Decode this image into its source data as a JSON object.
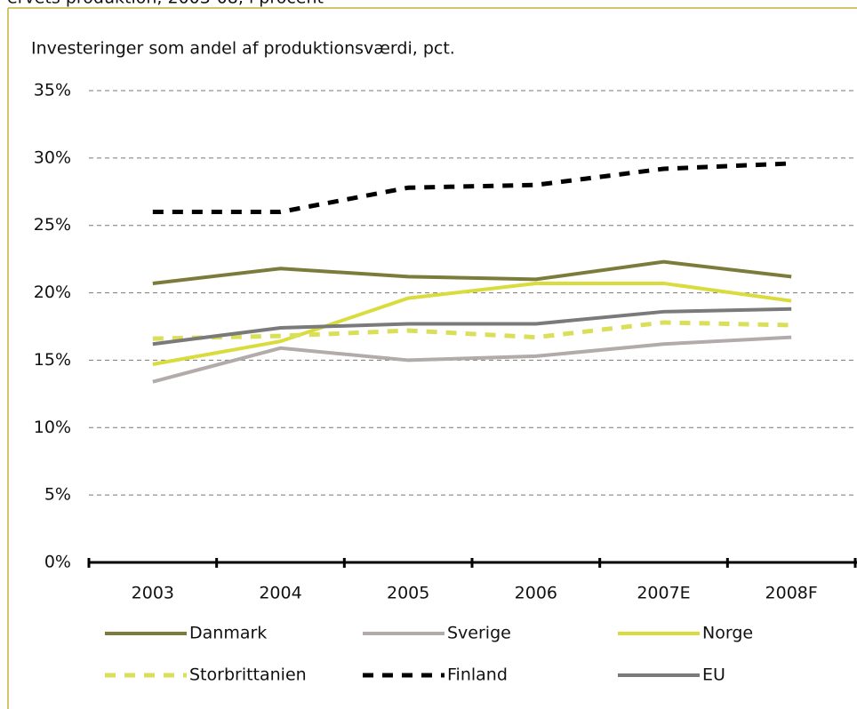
{
  "chart_data": {
    "type": "line",
    "header": "ervets produktion, 2003-08, i procent",
    "subtitle": "Investeringer som andel af produktionsværdi, pct.",
    "categories": [
      "2003",
      "2004",
      "2005",
      "2006",
      "2007E",
      "2008F"
    ],
    "series": [
      {
        "name": "Danmark",
        "color": "#7b7b3b",
        "dashed": false,
        "values": [
          20.7,
          21.8,
          21.2,
          21.0,
          22.3,
          21.2
        ]
      },
      {
        "name": "Sverige",
        "color": "#b3aaaa",
        "dashed": false,
        "values": [
          13.4,
          15.9,
          15.0,
          15.3,
          16.2,
          16.7
        ]
      },
      {
        "name": "Norge",
        "color": "#d9dc3c",
        "dashed": false,
        "values": [
          14.7,
          16.4,
          19.6,
          20.7,
          20.7,
          19.4
        ]
      },
      {
        "name": "Storbrittanien",
        "color": "#dadf5a",
        "dashed": true,
        "values": [
          16.6,
          16.8,
          17.2,
          16.7,
          17.8,
          17.6
        ]
      },
      {
        "name": "Finland",
        "color": "#000000",
        "dashed": true,
        "values": [
          26.0,
          26.0,
          27.8,
          28.0,
          29.2,
          29.6
        ]
      },
      {
        "name": "EU",
        "color": "#7a7a7a",
        "dashed": false,
        "values": [
          16.2,
          17.4,
          17.7,
          17.7,
          18.6,
          18.8
        ]
      }
    ],
    "ylim": [
      0,
      35
    ],
    "yticks": [
      {
        "value": 0,
        "label": "0%"
      },
      {
        "value": 5,
        "label": "5%"
      },
      {
        "value": 10,
        "label": "10%"
      },
      {
        "value": 15,
        "label": "15%"
      },
      {
        "value": 20,
        "label": "20%"
      },
      {
        "value": 25,
        "label": "25%"
      },
      {
        "value": 30,
        "label": "30%"
      },
      {
        "value": 35,
        "label": "35%"
      }
    ],
    "grid": true
  }
}
